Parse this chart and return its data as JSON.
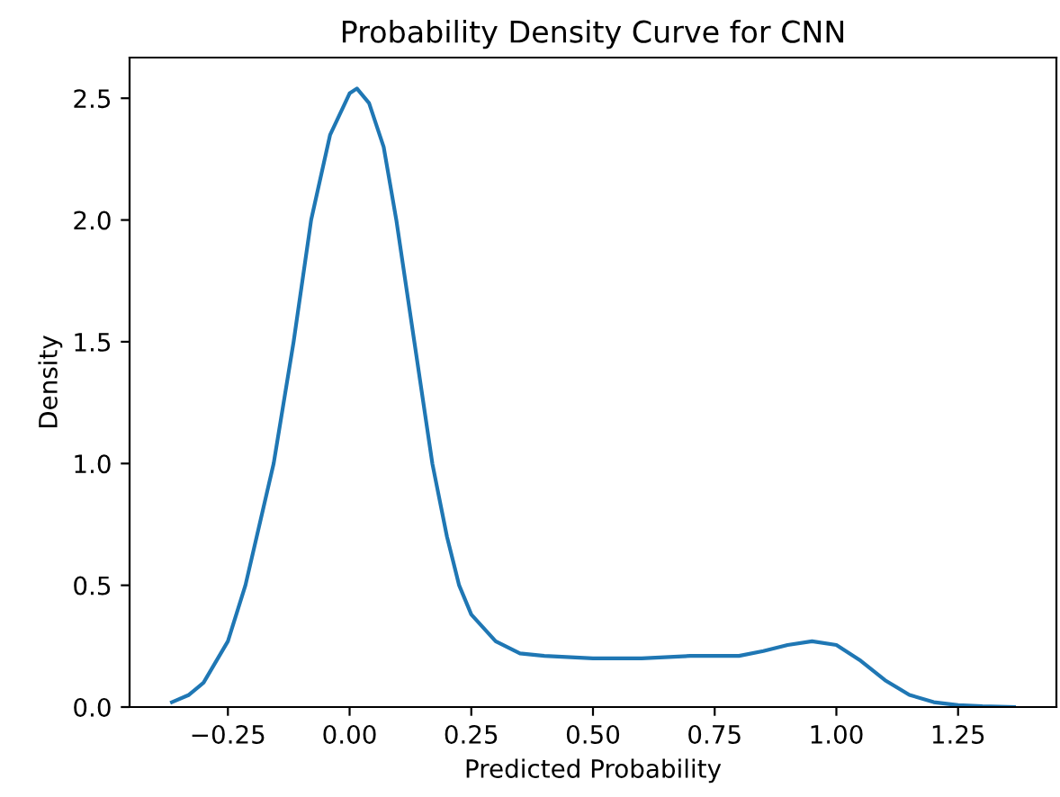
{
  "chart_data": {
    "type": "line",
    "title": "Probability Density Curve for CNN",
    "xlabel": "Predicted Probability",
    "ylabel": "Density",
    "series": [
      {
        "color": "#1f77b4",
        "x": [
          -0.365,
          -0.33,
          -0.3,
          -0.25,
          -0.214,
          -0.185,
          -0.156,
          -0.115,
          -0.079,
          -0.04,
          0.0,
          0.015,
          0.04,
          0.07,
          0.096,
          0.133,
          0.17,
          0.2,
          0.225,
          0.25,
          0.3,
          0.35,
          0.4,
          0.5,
          0.6,
          0.7,
          0.8,
          0.85,
          0.9,
          0.95,
          1.0,
          1.05,
          1.1,
          1.15,
          1.2,
          1.25,
          1.3,
          1.365
        ],
        "values": [
          0.02,
          0.05,
          0.1,
          0.27,
          0.5,
          0.75,
          1.0,
          1.5,
          2.0,
          2.35,
          2.52,
          2.54,
          2.48,
          2.3,
          2.0,
          1.5,
          1.0,
          0.7,
          0.5,
          0.38,
          0.27,
          0.22,
          0.21,
          0.2,
          0.2,
          0.21,
          0.21,
          0.23,
          0.255,
          0.27,
          0.255,
          0.19,
          0.11,
          0.05,
          0.02,
          0.008,
          0.003,
          0.0
        ]
      }
    ],
    "xlim": [
      -0.452,
      1.452
    ],
    "ylim": [
      0,
      2.667
    ],
    "xticks": [
      {
        "value": -0.25,
        "label": "−0.25"
      },
      {
        "value": 0.0,
        "label": "0.00"
      },
      {
        "value": 0.25,
        "label": "0.25"
      },
      {
        "value": 0.5,
        "label": "0.50"
      },
      {
        "value": 0.75,
        "label": "0.75"
      },
      {
        "value": 1.0,
        "label": "1.00"
      },
      {
        "value": 1.25,
        "label": "1.25"
      }
    ],
    "yticks": [
      {
        "value": 0,
        "label": "0.0"
      },
      {
        "value": 0.5,
        "label": "0.5"
      },
      {
        "value": 1.0,
        "label": "1.0"
      },
      {
        "value": 1.5,
        "label": "1.5"
      },
      {
        "value": 2.0,
        "label": "2.0"
      },
      {
        "value": 2.5,
        "label": "2.5"
      }
    ]
  }
}
